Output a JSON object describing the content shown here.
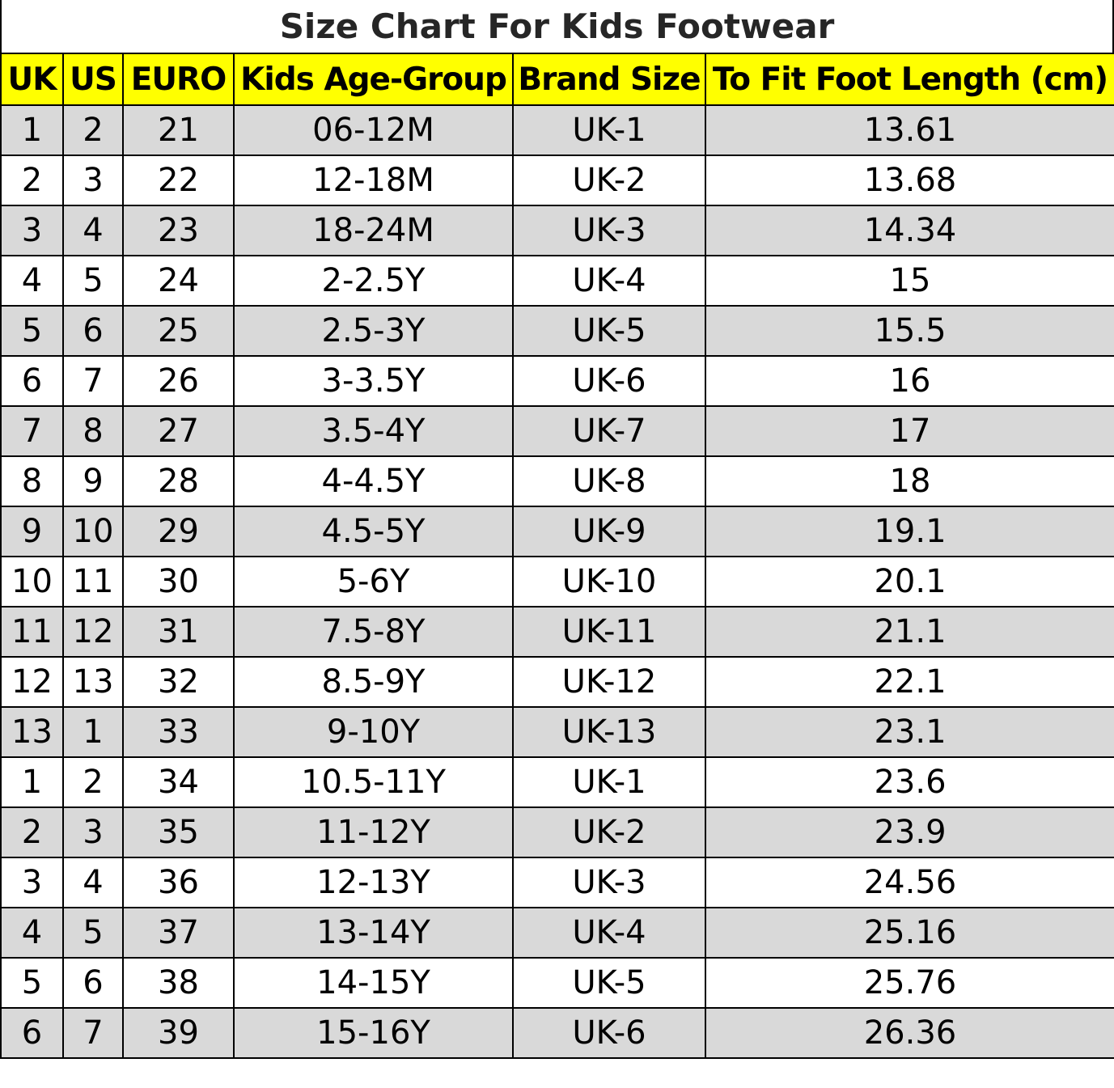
{
  "title": "Size Chart For Kids Footwear",
  "colors": {
    "header_bg": "#ffff00",
    "shaded_row_bg": "#d9d9d9",
    "plain_row_bg": "#ffffff",
    "grid_line": "#000000"
  },
  "headers": [
    "UK",
    "US",
    "EURO",
    "Kids Age-Group",
    "Brand Size",
    "To Fit Foot Length (cm)"
  ],
  "rows": [
    [
      "1",
      "2",
      "21",
      "06-12M",
      "UK-1",
      "13.61"
    ],
    [
      "2",
      "3",
      "22",
      "12-18M",
      "UK-2",
      "13.68"
    ],
    [
      "3",
      "4",
      "23",
      "18-24M",
      "UK-3",
      "14.34"
    ],
    [
      "4",
      "5",
      "24",
      "2-2.5Y",
      "UK-4",
      "15"
    ],
    [
      "5",
      "6",
      "25",
      "2.5-3Y",
      "UK-5",
      "15.5"
    ],
    [
      "6",
      "7",
      "26",
      "3-3.5Y",
      "UK-6",
      "16"
    ],
    [
      "7",
      "8",
      "27",
      "3.5-4Y",
      "UK-7",
      "17"
    ],
    [
      "8",
      "9",
      "28",
      "4-4.5Y",
      "UK-8",
      "18"
    ],
    [
      "9",
      "10",
      "29",
      "4.5-5Y",
      "UK-9",
      "19.1"
    ],
    [
      "10",
      "11",
      "30",
      "5-6Y",
      "UK-10",
      "20.1"
    ],
    [
      "11",
      "12",
      "31",
      "7.5-8Y",
      "UK-11",
      "21.1"
    ],
    [
      "12",
      "13",
      "32",
      "8.5-9Y",
      "UK-12",
      "22.1"
    ],
    [
      "13",
      "1",
      "33",
      "9-10Y",
      "UK-13",
      "23.1"
    ],
    [
      "1",
      "2",
      "34",
      "10.5-11Y",
      "UK-1",
      "23.6"
    ],
    [
      "2",
      "3",
      "35",
      "11-12Y",
      "UK-2",
      "23.9"
    ],
    [
      "3",
      "4",
      "36",
      "12-13Y",
      "UK-3",
      "24.56"
    ],
    [
      "4",
      "5",
      "37",
      "13-14Y",
      "UK-4",
      "25.16"
    ],
    [
      "5",
      "6",
      "38",
      "14-15Y",
      "UK-5",
      "25.76"
    ],
    [
      "6",
      "7",
      "39",
      "15-16Y",
      "UK-6",
      "26.36"
    ]
  ]
}
